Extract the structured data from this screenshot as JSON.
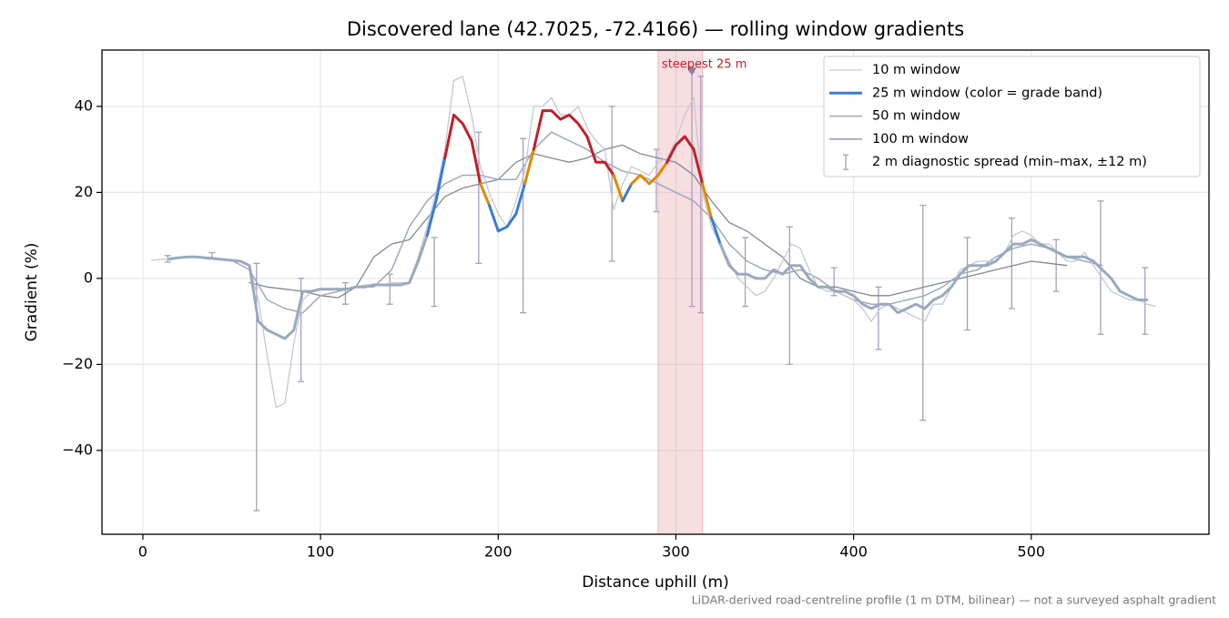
{
  "chart_data": {
    "type": "line",
    "title": "Discovered lane (42.7025, -72.4166) — rolling window gradients",
    "xlabel": "Distance uphill (m)",
    "ylabel": "Gradient (%)",
    "footnote": "LiDAR-derived road-centreline profile (1 m DTM, bilinear) — not a surveyed asphalt gradient",
    "xlim": [
      -23,
      600
    ],
    "ylim": [
      -59.5,
      53.1
    ],
    "xticks": [
      0,
      100,
      200,
      300,
      400,
      500
    ],
    "yticks": [
      {
        "value": -40,
        "label": "−40"
      },
      {
        "value": -20,
        "label": "−20"
      },
      0,
      20,
      40
    ],
    "grid": true,
    "legend": "upper right",
    "series": [
      {
        "name": "10 m window",
        "color": "#c3c8d2",
        "linewidth": 1.3,
        "x": [
          5,
          10,
          15,
          20,
          25,
          30,
          35,
          40,
          45,
          50,
          55,
          60,
          65,
          70,
          75,
          80,
          85,
          90,
          95,
          100,
          105,
          110,
          115,
          120,
          125,
          130,
          135,
          140,
          145,
          150,
          155,
          160,
          165,
          170,
          175,
          180,
          185,
          190,
          195,
          200,
          205,
          210,
          215,
          220,
          225,
          230,
          235,
          240,
          245,
          250,
          255,
          260,
          265,
          270,
          275,
          280,
          285,
          290,
          295,
          300,
          305,
          310,
          315,
          320,
          325,
          330,
          335,
          340,
          345,
          350,
          355,
          360,
          365,
          370,
          375,
          380,
          385,
          390,
          395,
          400,
          405,
          410,
          415,
          420,
          425,
          430,
          435,
          440,
          445,
          450,
          455,
          460,
          465,
          470,
          475,
          480,
          485,
          490,
          495,
          500,
          505,
          510,
          515,
          520,
          525,
          530,
          535,
          540,
          545,
          550,
          555,
          560,
          565,
          570
        ],
        "values": [
          4.2,
          4.4,
          4.6,
          4.8,
          5,
          5,
          4.8,
          4.6,
          4.4,
          4.2,
          3.8,
          3,
          -5,
          -18,
          -30,
          -29,
          -15,
          -5,
          -3,
          -2.5,
          -2.5,
          -2.5,
          -2.5,
          -2,
          -1.5,
          -1.5,
          -1.5,
          -1,
          -1,
          -1,
          5,
          12,
          20,
          30,
          46,
          47,
          38,
          26,
          20,
          15,
          12,
          18,
          25,
          40,
          40,
          42,
          38,
          38,
          40,
          35,
          32,
          30,
          16,
          22,
          26,
          25,
          24,
          27,
          28,
          32,
          38,
          42,
          20,
          12,
          8,
          4,
          0,
          -2,
          -4,
          -3,
          0,
          4,
          8,
          7,
          2,
          -2,
          -3,
          -3,
          -4,
          -5,
          -7,
          -10,
          -7,
          -6,
          -7,
          -8,
          -9,
          -10,
          -6,
          -6,
          -2,
          2,
          3,
          4,
          4,
          4,
          6,
          10,
          11,
          10,
          8,
          8,
          6,
          4,
          4,
          6,
          3,
          0,
          -3,
          -4,
          -5,
          -5,
          -6,
          -6.5
        ]
      },
      {
        "name": "25 m window (color = grade band)",
        "color": "#3a7bd5",
        "linewidth": 3,
        "x": [
          15,
          20,
          25,
          30,
          35,
          40,
          45,
          50,
          55,
          60,
          65,
          70,
          75,
          80,
          85,
          90,
          95,
          100,
          105,
          110,
          115,
          120,
          125,
          130,
          135,
          140,
          145,
          150,
          155,
          160,
          165,
          170,
          175,
          180,
          185,
          190,
          195,
          200,
          205,
          210,
          215,
          220,
          225,
          230,
          235,
          240,
          245,
          250,
          255,
          260,
          265,
          270,
          275,
          280,
          285,
          290,
          295,
          300,
          305,
          310,
          315,
          320,
          325,
          330,
          335,
          340,
          345,
          350,
          355,
          360,
          365,
          370,
          375,
          380,
          385,
          390,
          395,
          400,
          405,
          410,
          415,
          420,
          425,
          430,
          435,
          440,
          445,
          450,
          455,
          460,
          465,
          470,
          475,
          480,
          485,
          490,
          495,
          500,
          505,
          510,
          515,
          520,
          525,
          530,
          535,
          540,
          545,
          550,
          555,
          560,
          565
        ],
        "values": [
          4.5,
          4.8,
          5,
          5,
          4.8,
          4.6,
          4.4,
          4.2,
          4,
          3,
          -10,
          -12,
          -13,
          -14,
          -12,
          -3,
          -3,
          -2.5,
          -2.5,
          -2.5,
          -2.5,
          -2,
          -2,
          -1.5,
          -1.5,
          -1.5,
          -1.5,
          -1,
          4,
          10,
          18,
          28,
          38,
          36,
          32,
          22,
          17,
          11,
          12,
          15,
          22,
          30,
          39,
          39,
          37,
          38,
          36,
          33,
          27,
          27,
          24,
          18,
          22,
          24,
          22,
          24,
          27,
          31,
          33,
          30,
          22,
          14,
          8,
          3,
          1,
          1,
          0,
          0,
          2,
          1,
          3,
          3,
          0,
          -2,
          -2,
          -3,
          -3,
          -4,
          -6,
          -7,
          -6,
          -6,
          -8,
          -7,
          -6,
          -7,
          -5,
          -4,
          -2,
          1,
          3,
          3,
          3,
          4,
          6,
          8,
          8,
          9,
          8,
          7,
          6,
          5,
          5,
          5,
          4,
          2,
          0,
          -3,
          -4,
          -5,
          -5
        ],
        "colors": [
          "#9aa9bd",
          "#9aa9bd",
          "#9aa9bd",
          "#9aa9bd",
          "#9aa9bd",
          "#9aa9bd",
          "#9aa9bd",
          "#9aa9bd",
          "#9aa9bd",
          "#9aa9bd",
          "#9aa9bd",
          "#9aa9bd",
          "#9aa9bd",
          "#9aa9bd",
          "#9aa9bd",
          "#9aa9bd",
          "#9aa9bd",
          "#9aa9bd",
          "#9aa9bd",
          "#9aa9bd",
          "#9aa9bd",
          "#9aa9bd",
          "#9aa9bd",
          "#9aa9bd",
          "#9aa9bd",
          "#9aa9bd",
          "#9aa9bd",
          "#9aa9bd",
          "#9aa9bd",
          "#3a7bd5",
          "#3a7bd5",
          "#c01f2a",
          "#c01f2a",
          "#c01f2a",
          "#c01f2a",
          "#de8a00",
          "#3a7bd5",
          "#3a7bd5",
          "#3a7bd5",
          "#3a7bd5",
          "#de8a00",
          "#c01f2a",
          "#c01f2a",
          "#c01f2a",
          "#c01f2a",
          "#c01f2a",
          "#c01f2a",
          "#c01f2a",
          "#c01f2a",
          "#c01f2a",
          "#de8a00",
          "#3a7bd5",
          "#de8a00",
          "#de8a00",
          "#de8a00",
          "#de8a00",
          "#c01f2a",
          "#c01f2a",
          "#c01f2a",
          "#c01f2a",
          "#de8a00",
          "#3a7bd5",
          "#9aa9bd",
          "#9aa9bd",
          "#9aa9bd",
          "#9aa9bd",
          "#9aa9bd",
          "#9aa9bd",
          "#9aa9bd",
          "#9aa9bd",
          "#9aa9bd",
          "#9aa9bd",
          "#9aa9bd",
          "#9aa9bd",
          "#9aa9bd",
          "#9aa9bd",
          "#9aa9bd",
          "#9aa9bd",
          "#9aa9bd",
          "#9aa9bd",
          "#9aa9bd",
          "#9aa9bd",
          "#9aa9bd",
          "#9aa9bd",
          "#9aa9bd",
          "#9aa9bd",
          "#9aa9bd",
          "#9aa9bd",
          "#9aa9bd",
          "#9aa9bd",
          "#9aa9bd",
          "#9aa9bd",
          "#9aa9bd",
          "#9aa9bd",
          "#9aa9bd",
          "#9aa9bd",
          "#9aa9bd",
          "#9aa9bd",
          "#9aa9bd",
          "#9aa9bd",
          "#9aa9bd",
          "#9aa9bd",
          "#9aa9bd",
          "#9aa9bd",
          "#9aa9bd",
          "#9aa9bd",
          "#9aa9bd",
          "#9aa9bd",
          "#9aa9bd",
          "#9aa9bd",
          "#9aa9bd"
        ]
      },
      {
        "name": "50 m window",
        "color": "#a0a8bc",
        "linewidth": 1.5,
        "x": [
          20,
          30,
          40,
          50,
          60,
          70,
          80,
          90,
          100,
          110,
          120,
          130,
          140,
          150,
          160,
          170,
          180,
          190,
          200,
          210,
          220,
          230,
          240,
          250,
          260,
          270,
          280,
          290,
          300,
          310,
          320,
          330,
          340,
          350,
          360,
          370,
          380,
          390,
          400,
          410,
          420,
          430,
          440,
          450,
          460,
          470,
          480,
          490,
          500,
          510,
          520,
          530,
          540
        ],
        "values": [
          4.8,
          5,
          4.8,
          4.2,
          2,
          -5,
          -7,
          -8,
          -4,
          -3,
          -2,
          -2,
          2,
          12,
          18,
          22,
          24,
          24,
          23,
          23,
          30,
          34,
          32,
          30,
          27,
          25,
          24,
          22,
          20,
          18,
          14,
          8,
          4,
          2,
          1,
          2,
          0,
          -3,
          -5,
          -6,
          -6,
          -5,
          -4,
          -2,
          1,
          2,
          5,
          7,
          8,
          7,
          5,
          4,
          3
        ]
      },
      {
        "name": "100 m window",
        "color": "#7f8798",
        "linewidth": 1.3,
        "x": [
          60,
          70,
          80,
          90,
          100,
          110,
          120,
          130,
          140,
          150,
          160,
          170,
          180,
          190,
          200,
          210,
          220,
          230,
          240,
          250,
          260,
          270,
          280,
          290,
          300,
          310,
          320,
          330,
          340,
          350,
          360,
          370,
          380,
          390,
          400,
          410,
          420,
          430,
          440,
          450,
          460,
          470,
          480,
          490,
          500,
          510,
          520
        ],
        "values": [
          -1,
          -2,
          -2.5,
          -3,
          -4,
          -4.5,
          -2,
          5,
          8,
          9,
          14,
          19,
          21,
          22,
          23,
          27,
          29,
          28,
          27,
          28,
          30,
          31,
          29,
          28,
          27,
          24,
          18,
          13,
          11,
          8,
          5,
          0,
          -2,
          -2,
          -3,
          -4,
          -4,
          -3,
          -2,
          -1,
          0,
          1,
          2,
          3,
          4,
          3.5,
          3
        ]
      }
    ],
    "errorbars": {
      "name": "2 m diagnostic spread (min–max, ±12 m)",
      "color": "#a49fbf",
      "x": [
        14,
        39,
        64,
        89,
        114,
        139,
        164,
        189,
        214,
        264,
        289,
        309,
        314,
        339,
        364,
        389,
        414,
        439,
        464,
        489,
        514,
        539,
        564
      ],
      "low": [
        3.8,
        4.5,
        -54,
        -24,
        -6,
        -6,
        -6.5,
        3.5,
        -8,
        4,
        15.5,
        -6.5,
        -8,
        -6.5,
        -20,
        -4,
        -16.5,
        -33,
        -12,
        -7,
        -3,
        -13,
        -13
      ],
      "high": [
        5.3,
        6,
        3.5,
        0,
        -1,
        1,
        9.5,
        34,
        32.5,
        40,
        30,
        48,
        47,
        9.5,
        12,
        2.5,
        -2,
        17,
        9.5,
        14,
        9,
        18,
        2.5
      ]
    },
    "highlight": {
      "xlim": [
        290,
        315
      ],
      "color": "#e8a0a8",
      "label": "steepest 25 m",
      "label_color": "#c01f2a",
      "marker": {
        "x": 309,
        "y": 48,
        "color": "#8a7fb0"
      }
    }
  }
}
